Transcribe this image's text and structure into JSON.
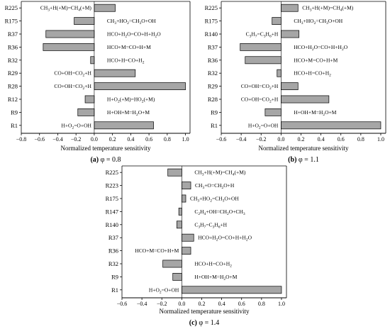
{
  "chart_data": [
    {
      "type": "bar",
      "orientation": "horizontal",
      "panel": "(a)",
      "caption_value": "φ = 0.8",
      "xlabel": "Normalized temperature sensitivity",
      "xlim": [
        -0.8,
        1.05
      ],
      "xticks": [
        "−0.8",
        "−0.6",
        "−0.4",
        "−0.2",
        "0.0",
        "0.2",
        "0.4",
        "0.6",
        "0.8",
        "1.0"
      ],
      "bar_color": "#a6a6a6",
      "categories": [
        "R225",
        "R175",
        "R37",
        "R36",
        "R32",
        "R29",
        "R28",
        "R12",
        "R9",
        "R1"
      ],
      "reactions": [
        "CH3+H(+M)=CH4(+M)",
        "CH3+HO2=CH3O+OH",
        "HCO+H2O=CO+H+H2O",
        "HCO+M=CO+H+M",
        "HCO+H=CO+H2",
        "CO+OH=CO2+H",
        "CO+OH=CO2+H",
        "H+O2(+M)=HO2(+M)",
        "H+OH+M=H2O+M",
        "H+O2=O+OH"
      ],
      "label_side": [
        "left",
        "right",
        "right",
        "right",
        "right",
        "left",
        "left",
        "right",
        "right",
        "left"
      ],
      "values": [
        0.23,
        -0.22,
        -0.53,
        -0.56,
        -0.04,
        0.45,
        1.0,
        -0.1,
        -0.18,
        0.65
      ]
    },
    {
      "type": "bar",
      "orientation": "horizontal",
      "panel": "(b)",
      "caption_value": "φ = 1.1",
      "xlabel": "Normalized temperature sensitivity",
      "xlim": [
        -0.6,
        1.05
      ],
      "xticks": [
        "−0.6",
        "−0.4",
        "−0.2",
        "0.0",
        "0.2",
        "0.4",
        "0.6",
        "0.8",
        "1.0"
      ],
      "bar_color": "#a6a6a6",
      "categories": [
        "R225",
        "R175",
        "R140",
        "R37",
        "R36",
        "R32",
        "R29",
        "R28",
        "R9",
        "R1"
      ],
      "reactions": [
        "CH3+H(+M)=CH4(+M)",
        "CH3+HO2=CH3O+OH",
        "C3H7=C3H6+H",
        "HCO+H2O=CO+H+H2O",
        "HCO+M=CO+H+M",
        "HCO+H=CO+H2",
        "CO+OH=CO2+H",
        "CO+OH=CO2+H",
        "H+OH+M=H2O+M",
        "H+O2=O+OH"
      ],
      "label_side": [
        "right",
        "right",
        "left",
        "right",
        "right",
        "right",
        "left",
        "left",
        "right",
        "left"
      ],
      "values": [
        0.17,
        -0.09,
        0.18,
        -0.41,
        -0.36,
        -0.04,
        0.17,
        0.48,
        -0.16,
        1.0
      ]
    },
    {
      "type": "bar",
      "orientation": "horizontal",
      "panel": "(c)",
      "caption_value": "φ = 1.4",
      "xlabel": "Normalized temperature sensitivity",
      "xlim": [
        -0.6,
        1.05
      ],
      "xticks": [
        "−0.6",
        "−0.4",
        "−0.2",
        "0.0",
        "0.2",
        "0.4",
        "0.6",
        "0.8",
        "1.0"
      ],
      "bar_color": "#a6a6a6",
      "categories": [
        "R225",
        "R223",
        "R175",
        "R147",
        "R140",
        "R37",
        "R36",
        "R32",
        "R9",
        "R1"
      ],
      "reactions": [
        "CH3+H(+M)=CH4(+M)",
        "CH3+O=CH2O+H",
        "CH3+HO2=CH3O+OH",
        "C2H4+OH=CH2O+CH3",
        "C3H7=C3H6+H",
        "HCO+H2O=CO+H+H2O",
        "HCO+M=CO+H+M",
        "HCO+H=CO+H2",
        "H+OH+M=H2O+M",
        "H+O2=O+OH"
      ],
      "label_side": [
        "right",
        "right",
        "right",
        "right",
        "right",
        "right",
        "left",
        "right",
        "right",
        "left"
      ],
      "values": [
        -0.14,
        0.09,
        0.04,
        -0.03,
        -0.05,
        0.12,
        0.09,
        -0.19,
        -0.09,
        1.0
      ]
    }
  ]
}
